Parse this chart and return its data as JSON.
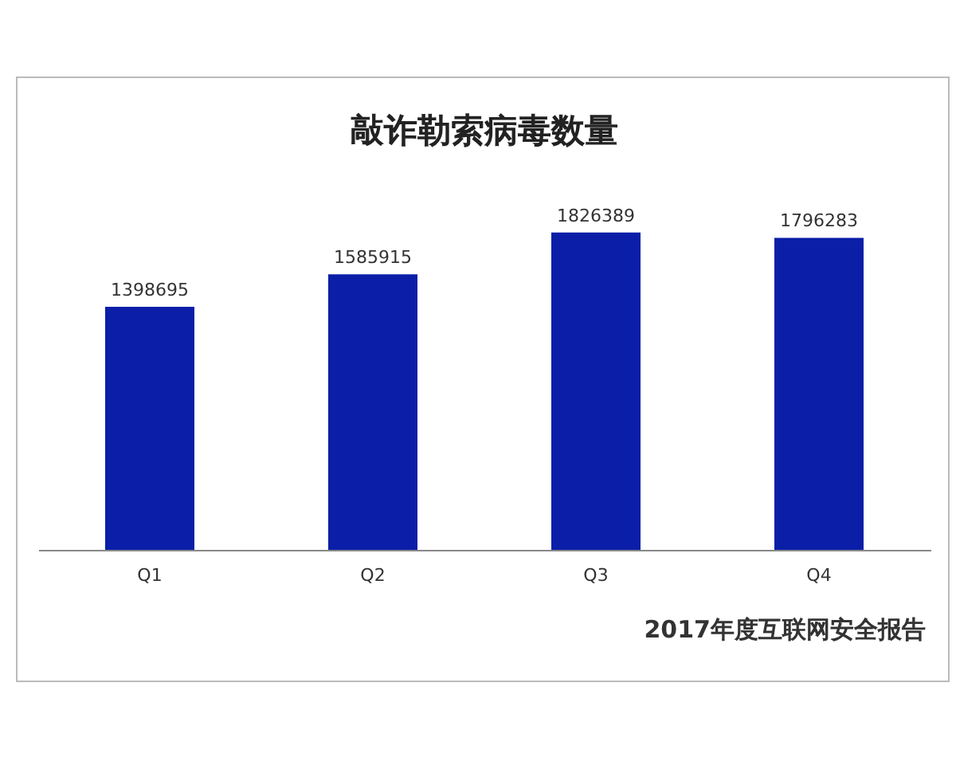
{
  "chart_data": {
    "type": "bar",
    "title": "敲诈勒索病毒数量",
    "categories": [
      "Q1",
      "Q2",
      "Q3",
      "Q4"
    ],
    "values": [
      1398695,
      1585915,
      1826389,
      1796283
    ],
    "color": "#0b1ea8",
    "data_labels": true,
    "annotations": [
      "2017年度互联网安全报告"
    ]
  }
}
